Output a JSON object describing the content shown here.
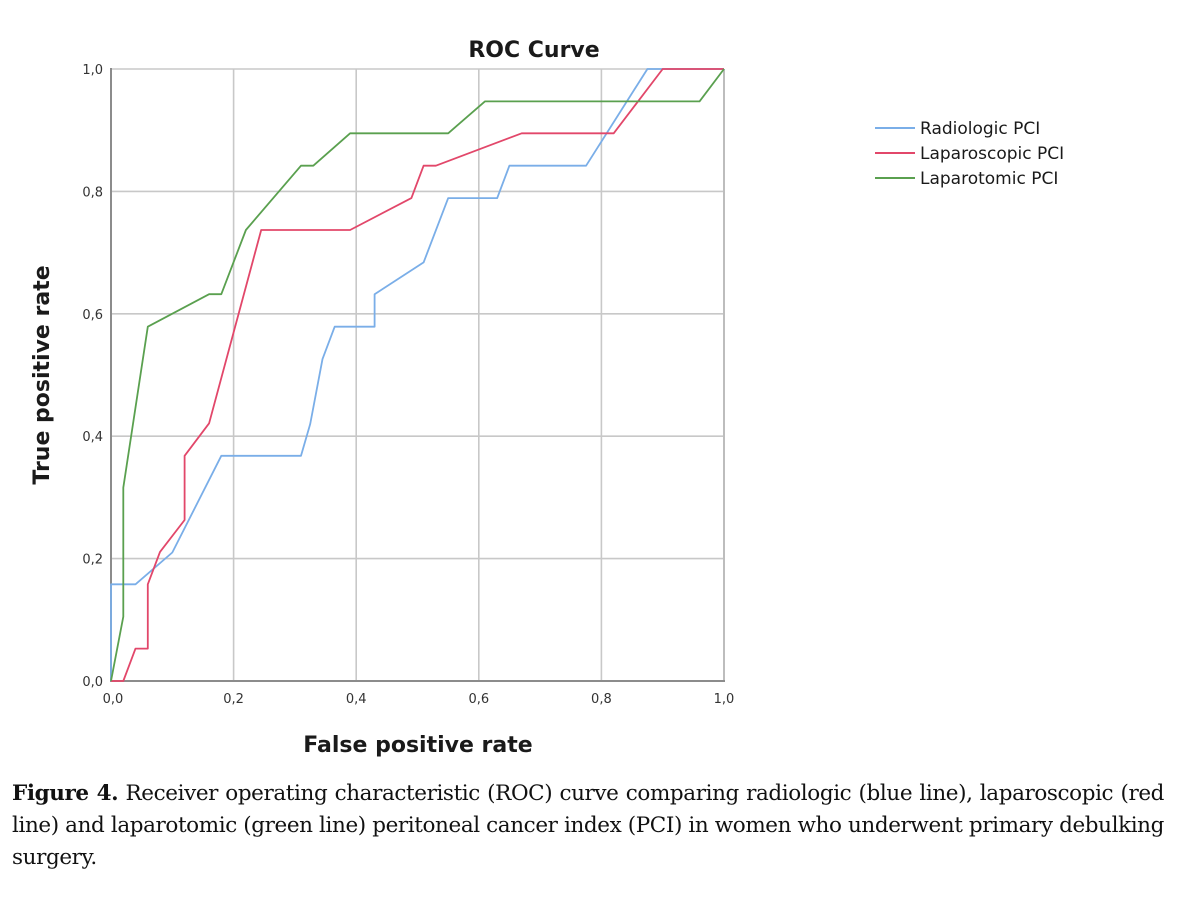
{
  "chart_data": {
    "type": "line",
    "title": "ROC Curve",
    "xlabel": "False positive rate",
    "ylabel": "True positive rate",
    "xlim": [
      0,
      1
    ],
    "ylim": [
      0,
      1
    ],
    "grid": true,
    "legend_position": "top-right, outside plot",
    "x_ticks": [
      "0,0",
      "0,2",
      "0,4",
      "0,6",
      "0,8",
      "1,0"
    ],
    "y_ticks": [
      "0,0",
      "0,2",
      "0,4",
      "0,6",
      "0,8",
      "1,0"
    ],
    "x_tick_values": [
      0,
      0.2,
      0.4,
      0.6,
      0.8,
      1.0
    ],
    "y_tick_values": [
      0,
      0.2,
      0.4,
      0.6,
      0.8,
      1.0
    ],
    "series": [
      {
        "name": "Radiologic PCI",
        "color": "#7aaee8",
        "points": [
          [
            0,
            0
          ],
          [
            0,
            0.158
          ],
          [
            0.04,
            0.158
          ],
          [
            0.1,
            0.21
          ],
          [
            0.18,
            0.368
          ],
          [
            0.31,
            0.368
          ],
          [
            0.325,
            0.42
          ],
          [
            0.345,
            0.526
          ],
          [
            0.365,
            0.579
          ],
          [
            0.43,
            0.579
          ],
          [
            0.43,
            0.632
          ],
          [
            0.51,
            0.684
          ],
          [
            0.55,
            0.789
          ],
          [
            0.63,
            0.789
          ],
          [
            0.65,
            0.842
          ],
          [
            0.775,
            0.842
          ],
          [
            0.875,
            1.0
          ],
          [
            1.0,
            1.0
          ]
        ]
      },
      {
        "name": "Laparoscopic PCI",
        "color": "#e2476a",
        "points": [
          [
            0,
            0
          ],
          [
            0.02,
            0
          ],
          [
            0.04,
            0.053
          ],
          [
            0.06,
            0.053
          ],
          [
            0.06,
            0.158
          ],
          [
            0.08,
            0.211
          ],
          [
            0.12,
            0.263
          ],
          [
            0.12,
            0.368
          ],
          [
            0.16,
            0.421
          ],
          [
            0.245,
            0.737
          ],
          [
            0.39,
            0.737
          ],
          [
            0.49,
            0.789
          ],
          [
            0.51,
            0.842
          ],
          [
            0.53,
            0.842
          ],
          [
            0.67,
            0.895
          ],
          [
            0.82,
            0.895
          ],
          [
            0.9,
            1.0
          ],
          [
            1.0,
            1.0
          ]
        ]
      },
      {
        "name": "Laparotomic PCI",
        "color": "#5aa04f",
        "points": [
          [
            0,
            0
          ],
          [
            0.02,
            0.105
          ],
          [
            0.02,
            0.316
          ],
          [
            0.06,
            0.579
          ],
          [
            0.16,
            0.632
          ],
          [
            0.18,
            0.632
          ],
          [
            0.22,
            0.737
          ],
          [
            0.31,
            0.842
          ],
          [
            0.33,
            0.842
          ],
          [
            0.39,
            0.895
          ],
          [
            0.55,
            0.895
          ],
          [
            0.61,
            0.947
          ],
          [
            0.96,
            0.947
          ],
          [
            1.0,
            1.0
          ]
        ]
      }
    ]
  },
  "caption": {
    "label": "Figure 4.",
    "text": " Receiver operating characteristic (ROC) curve comparing radiologic (blue line), laparoscopic (red line) and laparotomic (green line) peritoneal cancer index (PCI) in women who underwent primary debulking surgery."
  }
}
